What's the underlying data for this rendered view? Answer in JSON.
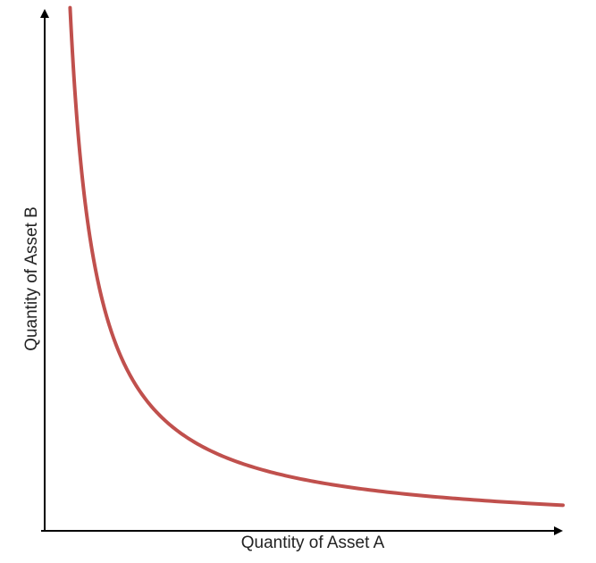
{
  "chart_data": {
    "type": "line",
    "title": "",
    "xlabel": "Quantity of Asset A",
    "ylabel": "Quantity of Asset B",
    "xlim": [
      0,
      1
    ],
    "ylim": [
      0,
      1
    ],
    "grid": false,
    "axis_ticks": false,
    "series": [
      {
        "color": "#c0504d",
        "shape": "hyperbola (constant product x*y = k)",
        "x": [
          0.049,
          0.06,
          0.08,
          0.1,
          0.15,
          0.2,
          0.3,
          0.4,
          0.5,
          0.6,
          0.7,
          0.8,
          0.9,
          1.0
        ],
        "y": [
          1.0,
          0.81,
          0.61,
          0.49,
          0.33,
          0.245,
          0.163,
          0.122,
          0.098,
          0.082,
          0.07,
          0.061,
          0.054,
          0.049
        ]
      }
    ]
  }
}
